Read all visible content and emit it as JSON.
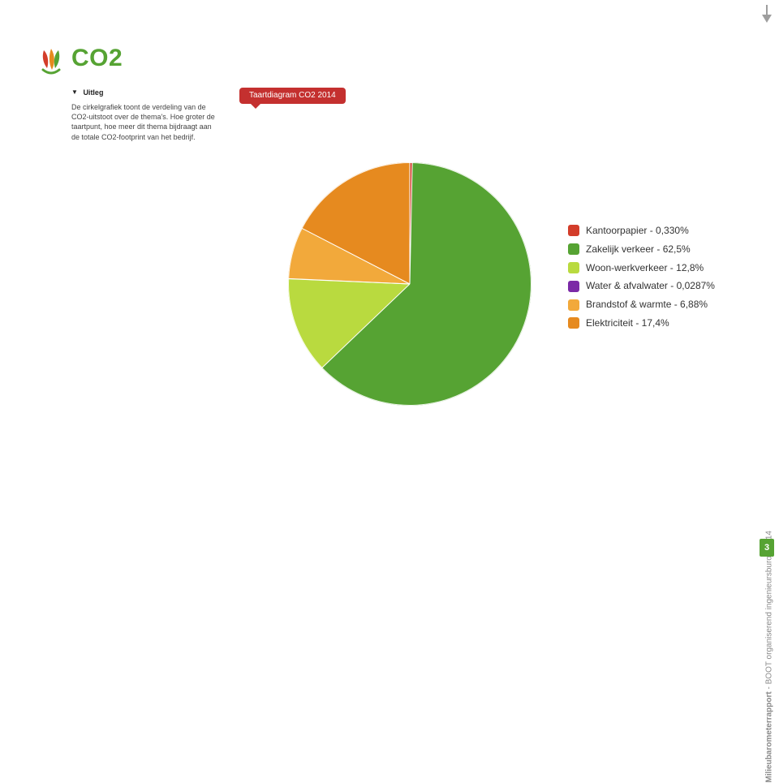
{
  "title": {
    "text": "CO2",
    "color": "#56a333"
  },
  "logo": {
    "leaf1": "#d33d2a",
    "leaf2": "#e68a1f",
    "leaf3": "#56a333",
    "stem": "#56a333"
  },
  "uitleg": {
    "heading": "Uitleg",
    "body": "De cirkelgrafiek toont de verdeling van de CO2-uitstoot over de thema's. Hoe groter de taartpunt, hoe meer dit thema bijdraagt aan de totale CO2-footprint van het bedrijf."
  },
  "badge": {
    "text": "Taartdiagram CO2 2014",
    "bg": "#c4302f"
  },
  "chart": {
    "type": "pie",
    "background": "#ffffff",
    "separator_color": "#ffffff",
    "separator_width": 1,
    "start_angle_deg": 0,
    "slices": [
      {
        "label": "Kantoorpapier",
        "percent": 0.33,
        "display": "Kantoorpapier - 0,330%",
        "color": "#d33d2a"
      },
      {
        "label": "Zakelijk verkeer",
        "percent": 62.5,
        "display": "Zakelijk verkeer - 62,5%",
        "color": "#56a333"
      },
      {
        "label": "Woon-werkverkeer",
        "percent": 12.8,
        "display": "Woon-werkverkeer - 12,8%",
        "color": "#b9da3f"
      },
      {
        "label": "Water & afvalwater",
        "percent": 0.0287,
        "display": "Water & afvalwater - 0,0287%",
        "color": "#7b2aa6"
      },
      {
        "label": "Brandstof & warmte",
        "percent": 6.88,
        "display": "Brandstof & warmte - 6,88%",
        "color": "#f2a93b"
      },
      {
        "label": "Elektriciteit",
        "percent": 17.4,
        "display": "Elektriciteit - 17,4%",
        "color": "#e68a1f"
      }
    ]
  },
  "legend": {
    "fontsize": 12
  },
  "sidebar": {
    "label_bold": "Milieubarometerrapport",
    "label_rest": " - BOOT organiserend ingenieursburo - 2014",
    "label_color": "#8a8a8a",
    "page_number": "3",
    "page_box_color": "#56a333",
    "arrow_color": "#9e9e9e"
  }
}
